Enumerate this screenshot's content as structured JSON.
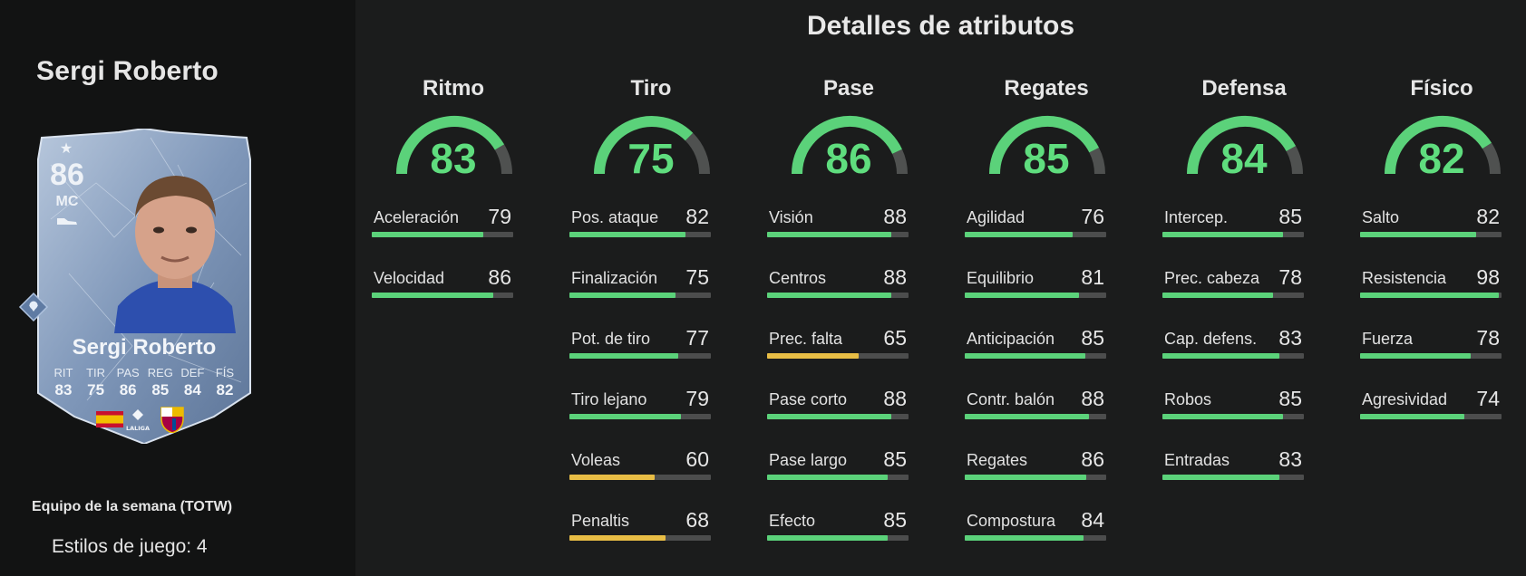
{
  "left": {
    "player_name": "Sergi Roberto",
    "card": {
      "rating": "86",
      "position": "MC",
      "name": "Sergi Roberto",
      "stats": [
        {
          "label": "RIT",
          "value": "83"
        },
        {
          "label": "TIR",
          "value": "75"
        },
        {
          "label": "PAS",
          "value": "86"
        },
        {
          "label": "REG",
          "value": "85"
        },
        {
          "label": "DEF",
          "value": "84"
        },
        {
          "label": "FÍS",
          "value": "82"
        }
      ],
      "league_logo_text": "LALIGA"
    },
    "promo": "Equipo de la semana (TOTW)",
    "playstyles": "Estilos de juego: 4"
  },
  "main": {
    "title": "Detalles de atributos",
    "categories": [
      {
        "name": "Ritmo",
        "value": 83,
        "attributes": [
          {
            "label": "Aceleración",
            "value": 79
          },
          {
            "label": "Velocidad",
            "value": 86
          }
        ]
      },
      {
        "name": "Tiro",
        "value": 75,
        "attributes": [
          {
            "label": "Pos. ataque",
            "value": 82
          },
          {
            "label": "Finalización",
            "value": 75
          },
          {
            "label": "Pot. de tiro",
            "value": 77
          },
          {
            "label": "Tiro lejano",
            "value": 79
          },
          {
            "label": "Voleas",
            "value": 60
          },
          {
            "label": "Penaltis",
            "value": 68
          }
        ]
      },
      {
        "name": "Pase",
        "value": 86,
        "attributes": [
          {
            "label": "Visión",
            "value": 88
          },
          {
            "label": "Centros",
            "value": 88
          },
          {
            "label": "Prec. falta",
            "value": 65
          },
          {
            "label": "Pase corto",
            "value": 88
          },
          {
            "label": "Pase largo",
            "value": 85
          },
          {
            "label": "Efecto",
            "value": 85
          }
        ]
      },
      {
        "name": "Regates",
        "value": 85,
        "attributes": [
          {
            "label": "Agilidad",
            "value": 76
          },
          {
            "label": "Equilibrio",
            "value": 81
          },
          {
            "label": "Anticipación",
            "value": 85
          },
          {
            "label": "Contr. balón",
            "value": 88
          },
          {
            "label": "Regates",
            "value": 86
          },
          {
            "label": "Compostura",
            "value": 84
          }
        ]
      },
      {
        "name": "Defensa",
        "value": 84,
        "attributes": [
          {
            "label": "Intercep.",
            "value": 85
          },
          {
            "label": "Prec. cabeza",
            "value": 78
          },
          {
            "label": "Cap. defens.",
            "value": 83
          },
          {
            "label": "Robos",
            "value": 85
          },
          {
            "label": "Entradas",
            "value": 83
          }
        ]
      },
      {
        "name": "Físico",
        "value": 82,
        "attributes": [
          {
            "label": "Salto",
            "value": 82
          },
          {
            "label": "Resistencia",
            "value": 98
          },
          {
            "label": "Fuerza",
            "value": 78
          },
          {
            "label": "Agresividad",
            "value": 74
          }
        ]
      }
    ]
  },
  "colors": {
    "high": "#5bd27a",
    "mid": "#e8bd45",
    "track": "#4c4d4d",
    "gauge_track": "#4f5150",
    "card_blue": "#8ea7c8"
  }
}
